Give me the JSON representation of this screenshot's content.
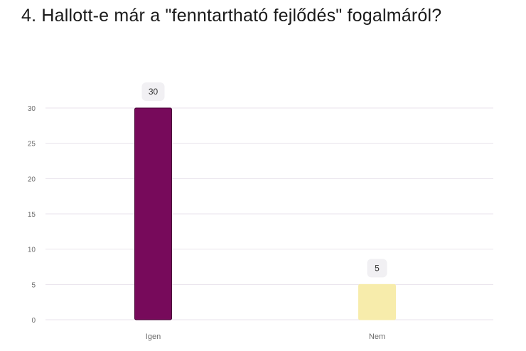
{
  "question": {
    "title": "4. Hallott-e már a \"fenntartható fejlődés\" fogalmáról?"
  },
  "chart_data": {
    "type": "bar",
    "title": "4. Hallott-e már a \"fenntartható fejlődés\" fogalmáról?",
    "categories": [
      "Igen",
      "Nem"
    ],
    "values": [
      30,
      5
    ],
    "colors": [
      "#770a5b",
      "#f7ecab"
    ],
    "bar_border_colors": [
      "#4a0638",
      "#f7ecab"
    ],
    "ylim": [
      0,
      30
    ],
    "yticks": [
      0,
      5,
      10,
      15,
      20,
      25,
      30
    ],
    "xlabel": "",
    "ylabel": "",
    "grid": true,
    "data_labels": [
      "30",
      "5"
    ]
  },
  "style": {
    "grid_color": "#e8e3ec",
    "axis_text_color": "#6b6b6b",
    "label_bg": "#f1f0f3",
    "label_text": "#333333"
  }
}
